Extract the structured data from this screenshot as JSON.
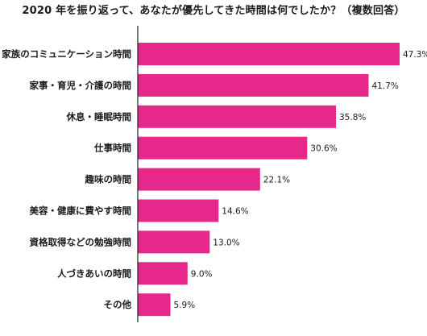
{
  "chart_data": {
    "type": "bar",
    "orientation": "horizontal",
    "title": "2020 年を振り返って、あなたが優先してきた時間は何でしたか？（複数回答）",
    "categories": [
      "家族のコミュニケーション時間",
      "家事・育児・介護の時間",
      "休息・睡眠時間",
      "仕事時間",
      "趣味の時間",
      "美容・健康に費やす時間",
      "資格取得などの勉強時間",
      "人づきあいの時間",
      "その他"
    ],
    "values": [
      47.3,
      41.7,
      35.8,
      30.6,
      22.1,
      14.6,
      13.0,
      9.0,
      5.9
    ],
    "value_labels": [
      "47.3%",
      "41.7%",
      "35.8%",
      "30.6%",
      "22.1%",
      "14.6%",
      "13.0%",
      "9.0%",
      "5.9%"
    ],
    "unit": "%",
    "xlim": [
      0,
      50
    ],
    "grid": false,
    "legend": "none",
    "bar_color": "#e6288a",
    "axis_color": "#222222"
  }
}
